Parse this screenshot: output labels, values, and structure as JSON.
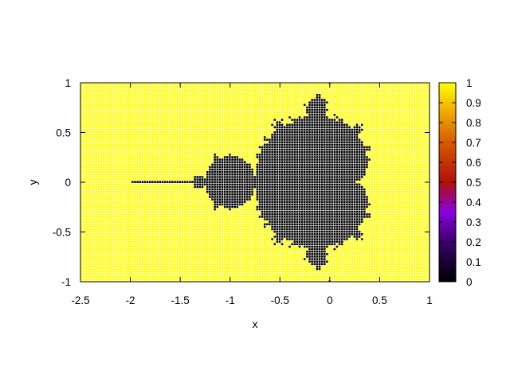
{
  "chart_data": {
    "type": "heatmap",
    "title": "",
    "subtitle": "",
    "xlabel": "x",
    "ylabel": "y",
    "xlim": [
      -2.5,
      1
    ],
    "ylim": [
      -1,
      1
    ],
    "x_ticks": [
      "-2.5",
      "-2",
      "-1.5",
      "-1",
      "-0.5",
      "0",
      "0.5",
      "1"
    ],
    "y_ticks": [
      "-1",
      "-0.5",
      "0",
      "0.5",
      "1"
    ],
    "colorbar": {
      "range": [
        0,
        1
      ],
      "ticks": [
        "0",
        "0.1",
        "0.2",
        "0.3",
        "0.4",
        "0.5",
        "0.6",
        "0.7",
        "0.8",
        "0.9",
        "1"
      ],
      "palette": [
        "#000000",
        "#5a00a6",
        "#a21a00",
        "#e88d00",
        "#ffff00"
      ]
    },
    "grid": true,
    "legend": "colorbar-right",
    "surface": {
      "description_values": "value = 1 outside the Mandelbrot set, 0 inside; sampled on a regular grid",
      "x_range": [
        -2,
        1
      ],
      "y_range": [
        -1,
        1
      ],
      "x_step": 0.025,
      "y_step": 0.025,
      "colors": {
        "inside": "#000000",
        "outside": "#ffff00",
        "grid_line": "#ffffff"
      }
    }
  }
}
